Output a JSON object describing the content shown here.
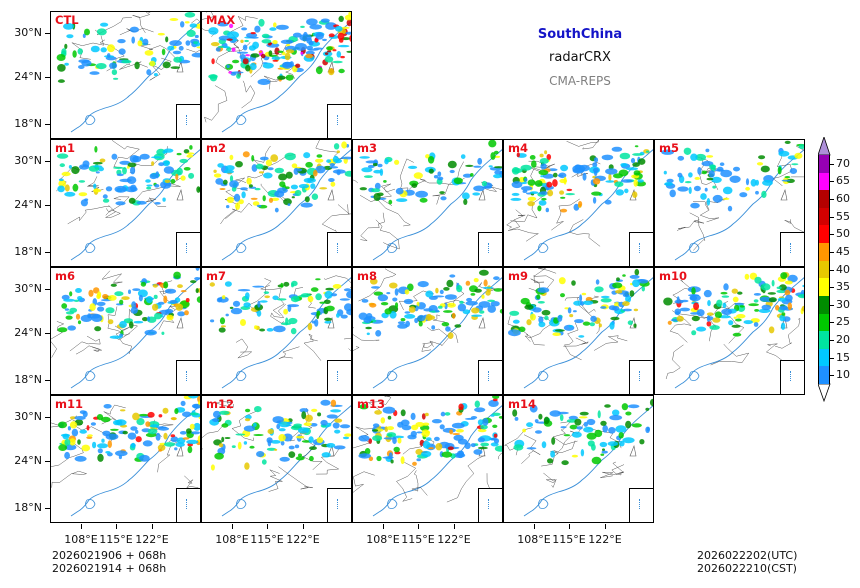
{
  "header": {
    "region": "SouthChina",
    "product": "radarCRX",
    "system": "CMA-REPS",
    "region_color": "#1414c8",
    "system_color": "#808080"
  },
  "panels": [
    {
      "label": "CTL",
      "density": 0.35
    },
    {
      "label": "MAX",
      "density": 1.0
    },
    {
      "label": "m1",
      "density": 0.45
    },
    {
      "label": "m2",
      "density": 0.55
    },
    {
      "label": "m3",
      "density": 0.3
    },
    {
      "label": "m4",
      "density": 0.65
    },
    {
      "label": "m5",
      "density": 0.3
    },
    {
      "label": "m6",
      "density": 0.6
    },
    {
      "label": "m7",
      "density": 0.4
    },
    {
      "label": "m8",
      "density": 0.55
    },
    {
      "label": "m9",
      "density": 0.5
    },
    {
      "label": "m10",
      "density": 0.6
    },
    {
      "label": "m11",
      "density": 0.65
    },
    {
      "label": "m12",
      "density": 0.5
    },
    {
      "label": "m13",
      "density": 0.7
    },
    {
      "label": "m14",
      "density": 0.3
    }
  ],
  "axes": {
    "lat_ticks": [
      "30°N",
      "24°N",
      "18°N"
    ],
    "lon_ticks": [
      "108°E",
      "115°E",
      "122°E"
    ]
  },
  "colorbar": {
    "levels": [
      "10",
      "15",
      "20",
      "25",
      "30",
      "35",
      "40",
      "45",
      "50",
      "55",
      "60",
      "65",
      "70"
    ],
    "colors": [
      "#1e90ff",
      "#00c8ff",
      "#00e5a0",
      "#00c800",
      "#008c00",
      "#ffff00",
      "#e6c800",
      "#ff9600",
      "#ff0000",
      "#d20000",
      "#b40000",
      "#ff00ff",
      "#9600b4",
      "#ad8fd8"
    ]
  },
  "footer": {
    "init_utc": "2026021906  +  068h",
    "init_cst": "2026021914  +  068h",
    "valid_utc": "2026022202(UTC)",
    "valid_cst": "2026022210(CST)"
  }
}
